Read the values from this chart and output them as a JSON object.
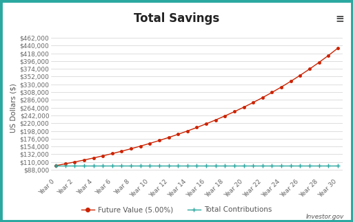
{
  "title": "Total Savings",
  "ylabel": "US Dollars ($)",
  "bg_outer": "#2ba8a0",
  "bg_plot": "#ffffff",
  "bg_title_area": "#ffffff",
  "grid_color": "#d0d0d0",
  "title_color": "#222222",
  "label_color": "#555555",
  "tick_color": "#666666",
  "fv_color": "#cc2200",
  "contrib_color": "#2ba8a0",
  "legend_label_fv": "Future Value (5.00%)",
  "legend_label_contrib": "Total Contributions",
  "watermark": "Investor.gov",
  "hamburger": "≡",
  "initial_investment": 100000,
  "annual_contribution": 0,
  "rate": 0.05,
  "years": 30,
  "contributions_value": 100000,
  "ylim_min": 66000,
  "ylim_max": 462000,
  "ytick_step": 22000,
  "xtick_step": 2,
  "title_fontsize": 12,
  "axis_label_fontsize": 7.5,
  "tick_fontsize": 6.5,
  "legend_fontsize": 7.5,
  "watermark_fontsize": 6.5
}
